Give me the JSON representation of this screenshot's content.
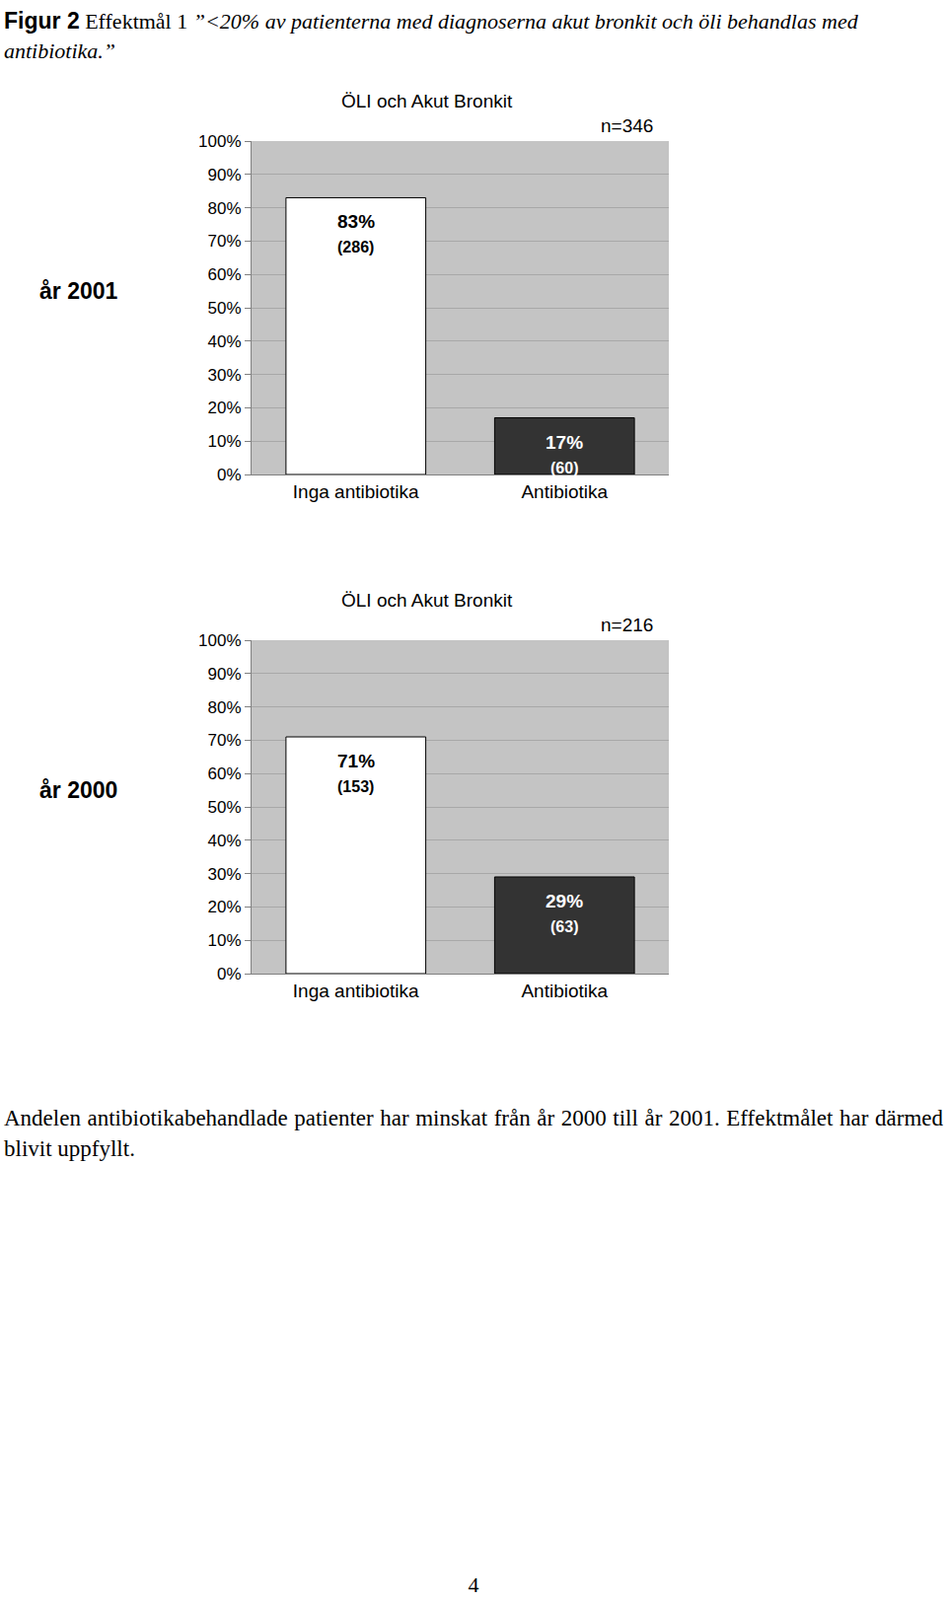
{
  "document": {
    "figure_label": "Figur 2",
    "caption_label": "Effektmål 1",
    "caption_quote": "”<20% av patienterna med diagnoserna akut bronkit och öli behandlas med antibiotika.”",
    "conclusion": "Andelen antibiotikabehandlade patienter har minskat från år 2000 till år 2001. Effektmålet har därmed blivit uppfyllt.",
    "page_number": "4"
  },
  "chart_data": [
    {
      "type": "bar",
      "title": "ÖLI och Akut Bronkit",
      "row_label": "år 2001",
      "sample_label": "n=346",
      "categories": [
        "Inga antibiotika",
        "Antibiotika"
      ],
      "values": [
        83,
        17
      ],
      "value_labels": [
        "83%",
        "17%"
      ],
      "counts": [
        286,
        60
      ],
      "count_labels": [
        "(286)",
        "(60)"
      ],
      "colors": [
        "#ffffff",
        "#333333"
      ],
      "data_labels": true,
      "grid": true,
      "ylim": [
        0,
        100
      ],
      "yticks": [
        {
          "value": 0,
          "label": "0%"
        },
        {
          "value": 10,
          "label": "10%"
        },
        {
          "value": 20,
          "label": "20%"
        },
        {
          "value": 30,
          "label": "30%"
        },
        {
          "value": 40,
          "label": "40%"
        },
        {
          "value": 50,
          "label": "50%"
        },
        {
          "value": 60,
          "label": "60%"
        },
        {
          "value": 70,
          "label": "70%"
        },
        {
          "value": 80,
          "label": "80%"
        },
        {
          "value": 90,
          "label": "90%"
        },
        {
          "value": 100,
          "label": "100%"
        }
      ]
    },
    {
      "type": "bar",
      "title": "ÖLI och Akut Bronkit",
      "row_label": "år 2000",
      "sample_label": "n=216",
      "categories": [
        "Inga antibiotika",
        "Antibiotika"
      ],
      "values": [
        71,
        29
      ],
      "value_labels": [
        "71%",
        "29%"
      ],
      "counts": [
        153,
        63
      ],
      "count_labels": [
        "(153)",
        "(63)"
      ],
      "colors": [
        "#ffffff",
        "#333333"
      ],
      "data_labels": true,
      "grid": true,
      "ylim": [
        0,
        100
      ],
      "yticks": [
        {
          "value": 0,
          "label": "0%"
        },
        {
          "value": 10,
          "label": "10%"
        },
        {
          "value": 20,
          "label": "20%"
        },
        {
          "value": 30,
          "label": "30%"
        },
        {
          "value": 40,
          "label": "40%"
        },
        {
          "value": 50,
          "label": "50%"
        },
        {
          "value": 60,
          "label": "60%"
        },
        {
          "value": 70,
          "label": "70%"
        },
        {
          "value": 80,
          "label": "80%"
        },
        {
          "value": 90,
          "label": "90%"
        },
        {
          "value": 100,
          "label": "100%"
        }
      ]
    }
  ]
}
